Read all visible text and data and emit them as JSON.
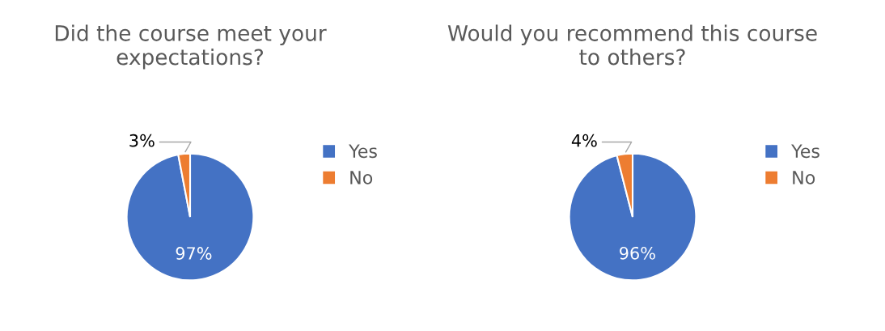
{
  "chart_data": [
    {
      "type": "pie",
      "title": "Did the course meet your expectations?",
      "categories": [
        "Yes",
        "No"
      ],
      "values": [
        97,
        3
      ],
      "value_labels": [
        "97%",
        "3%"
      ],
      "colors": [
        "#4472c4",
        "#ed7d31"
      ],
      "legend": "right"
    },
    {
      "type": "pie",
      "title": "Would you recommend this course to others?",
      "categories": [
        "Yes",
        "No"
      ],
      "values": [
        96,
        4
      ],
      "value_labels": [
        "96%",
        "4%"
      ],
      "colors": [
        "#4472c4",
        "#ed7d31"
      ],
      "legend": "right"
    }
  ]
}
